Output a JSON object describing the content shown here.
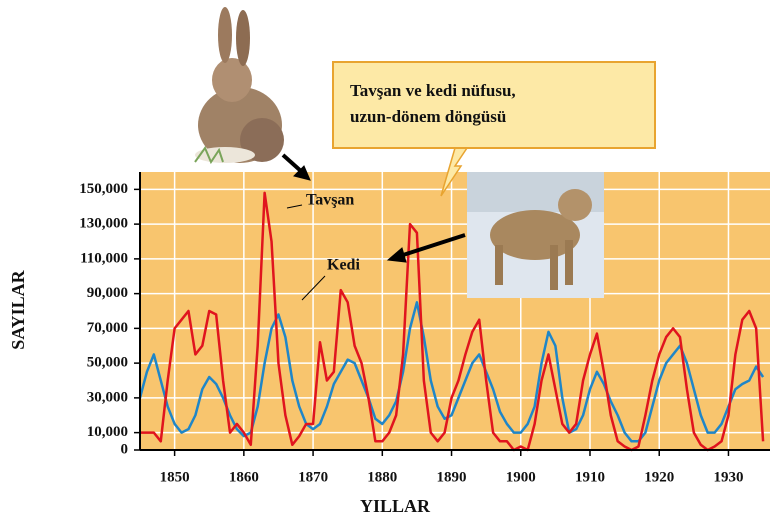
{
  "chart_data": {
    "type": "line",
    "callout": [
      "Tavşan ve kedi nüfusu,",
      "uzun-dönem döngüsü"
    ],
    "x_label": "YILLAR",
    "y_label": "SAYILAR",
    "x": [
      1845,
      1846,
      1847,
      1848,
      1849,
      1850,
      1851,
      1852,
      1853,
      1854,
      1855,
      1856,
      1857,
      1858,
      1859,
      1860,
      1861,
      1862,
      1863,
      1864,
      1865,
      1866,
      1867,
      1868,
      1869,
      1870,
      1871,
      1872,
      1873,
      1874,
      1875,
      1876,
      1877,
      1878,
      1879,
      1880,
      1881,
      1882,
      1883,
      1884,
      1885,
      1886,
      1887,
      1888,
      1889,
      1890,
      1891,
      1892,
      1893,
      1894,
      1895,
      1896,
      1897,
      1898,
      1899,
      1900,
      1901,
      1902,
      1903,
      1904,
      1905,
      1906,
      1907,
      1908,
      1909,
      1910,
      1911,
      1912,
      1913,
      1914,
      1915,
      1916,
      1917,
      1918,
      1919,
      1920,
      1921,
      1922,
      1923,
      1924,
      1925,
      1926,
      1927,
      1928,
      1929,
      1930,
      1931,
      1932,
      1933,
      1934,
      1935
    ],
    "series": [
      {
        "name": "Tavşan",
        "color": "#e0141e",
        "values": [
          10000,
          10000,
          10000,
          5000,
          40000,
          70000,
          75000,
          80000,
          55000,
          60000,
          80000,
          78000,
          40000,
          10000,
          15000,
          10000,
          3000,
          60000,
          148000,
          120000,
          50000,
          20000,
          3000,
          8000,
          15000,
          15000,
          62000,
          40000,
          45000,
          92000,
          85000,
          60000,
          50000,
          30000,
          5000,
          5000,
          10000,
          20000,
          55000,
          130000,
          125000,
          40000,
          10000,
          5000,
          10000,
          30000,
          40000,
          55000,
          68000,
          75000,
          40000,
          10000,
          5000,
          5000,
          0,
          2000,
          0,
          15000,
          40000,
          55000,
          35000,
          15000,
          10000,
          15000,
          40000,
          55000,
          67000,
          45000,
          20000,
          5000,
          2000,
          0,
          2000,
          20000,
          40000,
          55000,
          65000,
          70000,
          65000,
          35000,
          10000,
          3000,
          0,
          2000,
          5000,
          20000,
          55000,
          75000,
          80000,
          70000,
          5000
        ]
      },
      {
        "name": "Kedi",
        "color": "#1f86c8",
        "values": [
          30000,
          45000,
          55000,
          40000,
          25000,
          15000,
          10000,
          12000,
          20000,
          35000,
          42000,
          38000,
          30000,
          20000,
          12000,
          8000,
          10000,
          25000,
          50000,
          70000,
          78000,
          65000,
          40000,
          25000,
          15000,
          12000,
          15000,
          25000,
          38000,
          45000,
          52000,
          50000,
          40000,
          30000,
          18000,
          15000,
          20000,
          28000,
          45000,
          70000,
          85000,
          65000,
          40000,
          25000,
          18000,
          20000,
          30000,
          40000,
          50000,
          55000,
          45000,
          35000,
          22000,
          15000,
          10000,
          10000,
          15000,
          25000,
          50000,
          68000,
          60000,
          30000,
          10000,
          12000,
          20000,
          35000,
          45000,
          38000,
          28000,
          20000,
          10000,
          5000,
          5000,
          10000,
          25000,
          40000,
          50000,
          55000,
          60000,
          50000,
          35000,
          20000,
          10000,
          10000,
          15000,
          25000,
          35000,
          38000,
          40000,
          48000,
          42000
        ]
      }
    ],
    "xlim": [
      1845,
      1936
    ],
    "ylim": [
      0,
      160000
    ],
    "xticks": [
      1850,
      1860,
      1870,
      1880,
      1890,
      1900,
      1910,
      1920,
      1930
    ],
    "yticks": [
      0,
      {
        "value": 10000,
        "label": "10,000"
      },
      {
        "value": 30000,
        "label": "30,000"
      },
      {
        "value": 50000,
        "label": "50,000"
      },
      {
        "value": 70000,
        "label": "70,000"
      },
      {
        "value": 90000,
        "label": "90,000"
      },
      {
        "value": 110000,
        "label": "110,000"
      },
      {
        "value": 130000,
        "label": "130,000"
      },
      {
        "value": 150000,
        "label": "150,000"
      }
    ],
    "grid": true
  }
}
